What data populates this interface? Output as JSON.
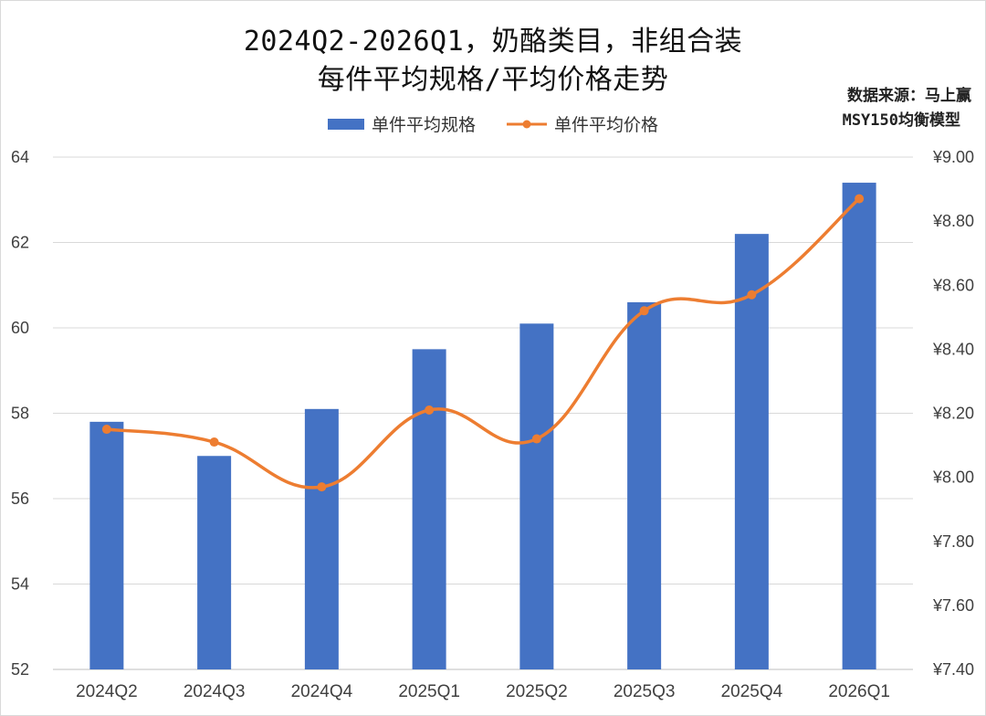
{
  "title_line1": "2024Q2-2026Q1，奶酪类目，非组合装",
  "title_line2": "每件平均规格/平均价格走势",
  "source_line1": "数据来源：马上赢",
  "source_line2": "MSY150均衡模型",
  "colors": {
    "bar": "#4472C4",
    "line": "#ED7D31",
    "grid": "#d9d9d9",
    "axis": "#bfbfbf"
  },
  "chart_data": {
    "type": "bar",
    "categories": [
      "2024Q2",
      "2024Q3",
      "2024Q4",
      "2025Q1",
      "2025Q2",
      "2025Q3",
      "2025Q4",
      "2026Q1"
    ],
    "series": [
      {
        "name": "单件平均规格",
        "type": "bar",
        "axis": "left",
        "values": [
          57.8,
          57.0,
          58.1,
          59.5,
          60.1,
          60.6,
          62.2,
          63.4
        ]
      },
      {
        "name": "单件平均价格",
        "type": "line",
        "axis": "right",
        "smooth": true,
        "values": [
          8.15,
          8.11,
          7.97,
          8.21,
          8.12,
          8.52,
          8.57,
          8.87
        ]
      }
    ],
    "y_left": {
      "min": 52,
      "max": 64,
      "step": 2,
      "ticks": [
        "52",
        "54",
        "56",
        "58",
        "60",
        "62",
        "64"
      ]
    },
    "y_right": {
      "min": 7.4,
      "max": 9.0,
      "step": 0.2,
      "ticks": [
        "¥7.40",
        "¥7.60",
        "¥7.80",
        "¥8.00",
        "¥8.20",
        "¥8.40",
        "¥8.60",
        "¥8.80",
        "¥9.00"
      ]
    },
    "grid": true,
    "legend_position": "top"
  }
}
